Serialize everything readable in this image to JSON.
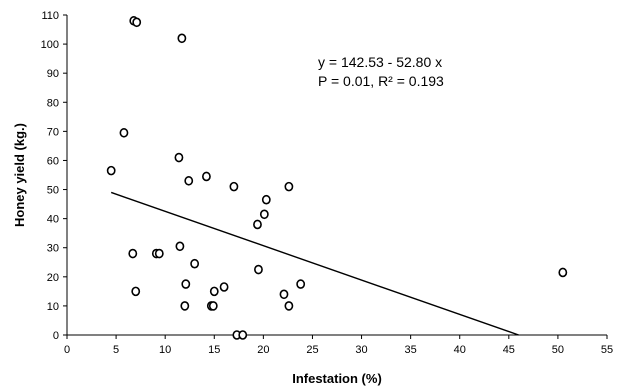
{
  "chart_data": {
    "type": "scatter",
    "xlabel": "Infestation  (%)",
    "ylabel": "Honey yield (kg.)",
    "xlim": [
      0,
      55
    ],
    "ylim": [
      0,
      110
    ],
    "x_ticks": [
      "0",
      "5",
      "10",
      "15",
      "20",
      "25",
      "30",
      "35",
      "40",
      "45",
      "50",
      "55"
    ],
    "y_ticks": [
      "0",
      "10",
      "20",
      "30",
      "40",
      "50",
      "60",
      "70",
      "80",
      "90",
      "100",
      "110"
    ],
    "grid": false,
    "legend": "none",
    "annotations": [
      "y = 142.53 - 52.80 x",
      "P = 0.01, R² = 0.193"
    ],
    "trendline": {
      "x": [
        4.5,
        46
      ],
      "y": [
        49,
        0
      ]
    },
    "points": [
      {
        "x": 6.8,
        "y": 108
      },
      {
        "x": 7.1,
        "y": 107.5
      },
      {
        "x": 11.7,
        "y": 102
      },
      {
        "x": 5.8,
        "y": 69.5
      },
      {
        "x": 4.5,
        "y": 56.5
      },
      {
        "x": 11.4,
        "y": 61
      },
      {
        "x": 14.2,
        "y": 54.5
      },
      {
        "x": 12.4,
        "y": 53
      },
      {
        "x": 17.0,
        "y": 51
      },
      {
        "x": 22.6,
        "y": 51
      },
      {
        "x": 20.3,
        "y": 46.5
      },
      {
        "x": 20.1,
        "y": 41.5
      },
      {
        "x": 19.4,
        "y": 38
      },
      {
        "x": 11.5,
        "y": 30.5
      },
      {
        "x": 6.7,
        "y": 28
      },
      {
        "x": 9.1,
        "y": 28
      },
      {
        "x": 9.4,
        "y": 28
      },
      {
        "x": 13.0,
        "y": 24.5
      },
      {
        "x": 19.5,
        "y": 22.5
      },
      {
        "x": 12.1,
        "y": 17.5
      },
      {
        "x": 16.0,
        "y": 16.5
      },
      {
        "x": 23.8,
        "y": 17.5
      },
      {
        "x": 7.0,
        "y": 15
      },
      {
        "x": 15.0,
        "y": 15
      },
      {
        "x": 22.1,
        "y": 14
      },
      {
        "x": 12.0,
        "y": 10
      },
      {
        "x": 14.7,
        "y": 10
      },
      {
        "x": 14.9,
        "y": 10
      },
      {
        "x": 22.6,
        "y": 10
      },
      {
        "x": 17.3,
        "y": 0
      },
      {
        "x": 17.9,
        "y": 0
      },
      {
        "x": 50.5,
        "y": 21.5
      }
    ]
  }
}
